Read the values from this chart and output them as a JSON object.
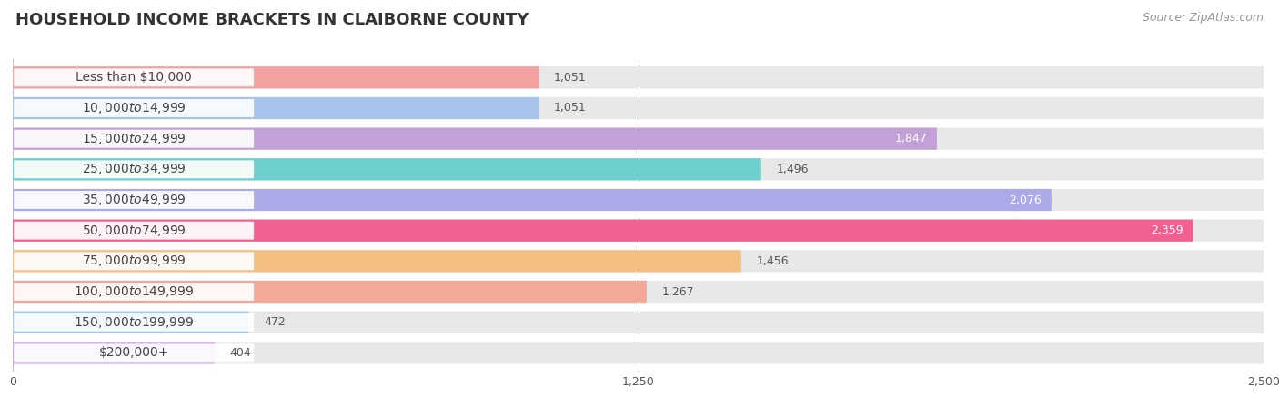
{
  "title": "HOUSEHOLD INCOME BRACKETS IN CLAIBORNE COUNTY",
  "source": "Source: ZipAtlas.com",
  "categories": [
    "Less than $10,000",
    "$10,000 to $14,999",
    "$15,000 to $24,999",
    "$25,000 to $34,999",
    "$35,000 to $49,999",
    "$50,000 to $74,999",
    "$75,000 to $99,999",
    "$100,000 to $149,999",
    "$150,000 to $199,999",
    "$200,000+"
  ],
  "values": [
    1051,
    1051,
    1847,
    1496,
    2076,
    2359,
    1456,
    1267,
    472,
    404
  ],
  "colors": [
    "#F2A0A0",
    "#A8C4EC",
    "#C4A0D8",
    "#6ECFCC",
    "#AAAAE8",
    "#F06090",
    "#F4C080",
    "#F4A898",
    "#A8C8F0",
    "#C8AADC"
  ],
  "xlim": [
    0,
    2500
  ],
  "xticks": [
    0,
    1250,
    2500
  ],
  "bar_height": 0.72,
  "background_color": "#ffffff",
  "bar_bg_color": "#e8e8e8",
  "title_fontsize": 13,
  "label_fontsize": 10,
  "value_fontsize": 9,
  "source_fontsize": 9
}
